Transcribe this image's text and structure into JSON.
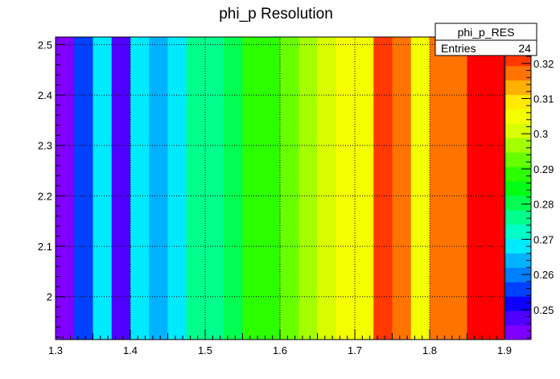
{
  "chart_data": {
    "type": "heatmap",
    "title": "phi_p Resolution",
    "xlabel": "",
    "ylabel": "",
    "x_range": [
      1.3,
      1.9
    ],
    "y_range": [
      1.915,
      2.515
    ],
    "x_ticks": [
      1.3,
      1.4,
      1.5,
      1.6,
      1.7,
      1.8,
      1.9
    ],
    "y_ticks": [
      2,
      2.1,
      2.2,
      2.3,
      2.4,
      2.5
    ],
    "grid": true,
    "columns": [
      {
        "x0": 1.3,
        "x1": 1.325,
        "value": 0.242
      },
      {
        "x0": 1.325,
        "x1": 1.35,
        "value": 0.256
      },
      {
        "x0": 1.35,
        "x1": 1.375,
        "value": 0.267
      },
      {
        "x0": 1.375,
        "x1": 1.4,
        "value": 0.249
      },
      {
        "x0": 1.4,
        "x1": 1.425,
        "value": 0.27
      },
      {
        "x0": 1.425,
        "x1": 1.45,
        "value": 0.264
      },
      {
        "x0": 1.45,
        "x1": 1.475,
        "value": 0.268
      },
      {
        "x0": 1.475,
        "x1": 1.5,
        "value": 0.276
      },
      {
        "x0": 1.5,
        "x1": 1.525,
        "value": 0.277
      },
      {
        "x0": 1.525,
        "x1": 1.55,
        "value": 0.279
      },
      {
        "x0": 1.55,
        "x1": 1.575,
        "value": 0.289
      },
      {
        "x0": 1.575,
        "x1": 1.6,
        "value": 0.288
      },
      {
        "x0": 1.6,
        "x1": 1.625,
        "value": 0.292
      },
      {
        "x0": 1.625,
        "x1": 1.65,
        "value": 0.297
      },
      {
        "x0": 1.65,
        "x1": 1.675,
        "value": 0.299
      },
      {
        "x0": 1.675,
        "x1": 1.7,
        "value": 0.304
      },
      {
        "x0": 1.7,
        "x1": 1.725,
        "value": 0.305
      },
      {
        "x0": 1.725,
        "x1": 1.75,
        "value": 0.322
      },
      {
        "x0": 1.75,
        "x1": 1.775,
        "value": 0.318
      },
      {
        "x0": 1.775,
        "x1": 1.8,
        "value": 0.305
      },
      {
        "x0": 1.8,
        "x1": 1.825,
        "value": 0.316
      },
      {
        "x0": 1.825,
        "x1": 1.85,
        "value": 0.316
      },
      {
        "x0": 1.85,
        "x1": 1.875,
        "value": 0.325
      },
      {
        "x0": 1.875,
        "x1": 1.9,
        "value": 0.325
      }
    ],
    "z_range": [
      0.2415,
      0.3275
    ],
    "z_ticks": [
      0.25,
      0.26,
      0.27,
      0.28,
      0.29,
      0.3,
      0.31,
      0.32
    ],
    "palette": [
      "#7f00ff",
      "#4f00ff",
      "#0c00ff",
      "#0040ff",
      "#0080ff",
      "#00b2ff",
      "#00eaff",
      "#00ffc8",
      "#00ff8c",
      "#00ff50",
      "#00ff14",
      "#2cff00",
      "#68ff00",
      "#a4ff00",
      "#d8ff00",
      "#f5ff00",
      "#ffea00",
      "#ffb000",
      "#ff7400",
      "#ff3800",
      "#ff0000"
    ],
    "stats_box": {
      "name": "phi_p_RES",
      "entries_label": "Entries",
      "entries_value": "24"
    }
  }
}
